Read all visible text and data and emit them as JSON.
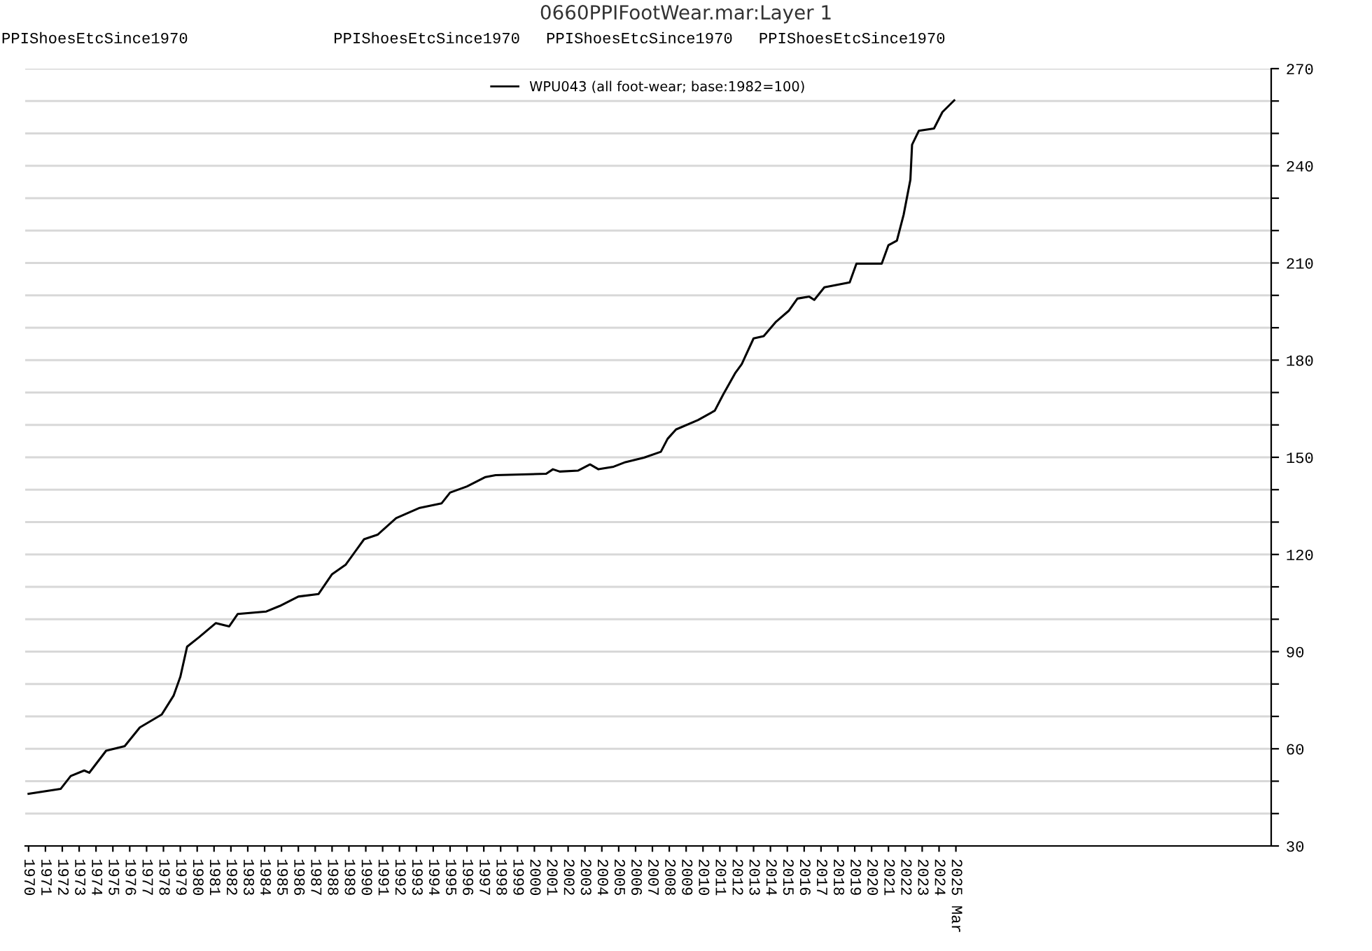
{
  "chart_data": {
    "type": "line",
    "title": "0660PPIFootWear.mar:Layer 1",
    "annotations": [
      "PPIShoesEtcSince1970",
      "PPIShoesEtcSince1970",
      "PPIShoesEtcSince1970",
      "PPIShoesEtcSince1970"
    ],
    "x": [
      1970.0,
      1971.9,
      1972.5,
      1973.3,
      1973.6,
      1974.6,
      1975.7,
      1976.6,
      1977.9,
      1978.6,
      1979.0,
      1979.4,
      1980.1,
      1981.1,
      1981.9,
      1982.4,
      1984.1,
      1984.9,
      1986.0,
      1987.2,
      1988.0,
      1988.8,
      1989.9,
      1990.7,
      1991.8,
      1993.2,
      1994.5,
      1995.0,
      1996.0,
      1997.1,
      1997.7,
      2000.7,
      2001.1,
      2001.5,
      2002.6,
      2003.3,
      2003.8,
      2004.7,
      2005.4,
      2006.5,
      2007.5,
      2007.9,
      2008.4,
      2009.7,
      2010.7,
      2011.2,
      2011.9,
      2012.3,
      2013.0,
      2013.6,
      2014.3,
      2015.1,
      2015.6,
      2016.3,
      2016.6,
      2017.2,
      2018.7,
      2019.1,
      2020.6,
      2021.0,
      2021.5,
      2021.9,
      2022.3,
      2022.4,
      2022.8,
      2023.7,
      2024.2,
      2024.9
    ],
    "series": [
      {
        "name": "WPU043 (all foot-wear; base:1982=100)",
        "color": "#000000",
        "values": [
          46.1,
          47.6,
          51.6,
          53.3,
          52.6,
          59.4,
          60.8,
          66.6,
          70.6,
          76.4,
          82.2,
          91.5,
          94.4,
          98.8,
          97.8,
          101.6,
          102.4,
          104.1,
          107.0,
          107.8,
          113.9,
          116.8,
          124.7,
          126.1,
          131.2,
          134.4,
          135.8,
          139.1,
          141.0,
          143.9,
          144.5,
          144.9,
          146.3,
          145.6,
          145.9,
          147.8,
          146.3,
          147.1,
          148.5,
          149.9,
          151.7,
          155.7,
          158.6,
          161.5,
          164.4,
          169.4,
          175.9,
          178.8,
          186.7,
          187.4,
          191.7,
          195.3,
          199.0,
          199.6,
          198.6,
          202.5,
          204.0,
          209.8,
          209.8,
          215.5,
          216.9,
          224.9,
          235.7,
          246.5,
          250.8,
          251.5,
          256.6,
          260.2
        ]
      }
    ],
    "xlim": [
      1969.8,
      2043.7
    ],
    "xticks": [
      1970,
      1971,
      1972,
      1973,
      1974,
      1975,
      1976,
      1977,
      1978,
      1979,
      1980,
      1981,
      1982,
      1983,
      1984,
      1985,
      1986,
      1987,
      1988,
      1989,
      1990,
      1991,
      1992,
      1993,
      1994,
      1995,
      1996,
      1997,
      1998,
      1999,
      2000,
      2001,
      2002,
      2003,
      2004,
      2005,
      2006,
      2007,
      2008,
      2009,
      2010,
      2011,
      2012,
      2013,
      2014,
      2015,
      2016,
      2017,
      2018,
      2019,
      2020,
      2021,
      2022,
      2023,
      2024,
      {
        "value": 2025,
        "label": "2025 Mar"
      }
    ],
    "ylim": [
      30,
      270
    ],
    "yticks": [
      30,
      {
        "value": 40,
        "label": null
      },
      {
        "value": 50,
        "label": null
      },
      60,
      {
        "value": 70,
        "label": null
      },
      {
        "value": 80,
        "label": null
      },
      90,
      {
        "value": 100,
        "label": null
      },
      {
        "value": 110,
        "label": null
      },
      120,
      {
        "value": 130,
        "label": null
      },
      {
        "value": 140,
        "label": null
      },
      150,
      {
        "value": 160,
        "label": null
      },
      {
        "value": 170,
        "label": null
      },
      180,
      {
        "value": 190,
        "label": null
      },
      {
        "value": 200,
        "label": null
      },
      210,
      {
        "value": 220,
        "label": null
      },
      {
        "value": 230,
        "label": null
      },
      240,
      {
        "value": 250,
        "label": null
      },
      {
        "value": 260,
        "label": null
      },
      270
    ],
    "grid": "y",
    "legend": "top",
    "marker": "none",
    "line_style": "solid"
  }
}
